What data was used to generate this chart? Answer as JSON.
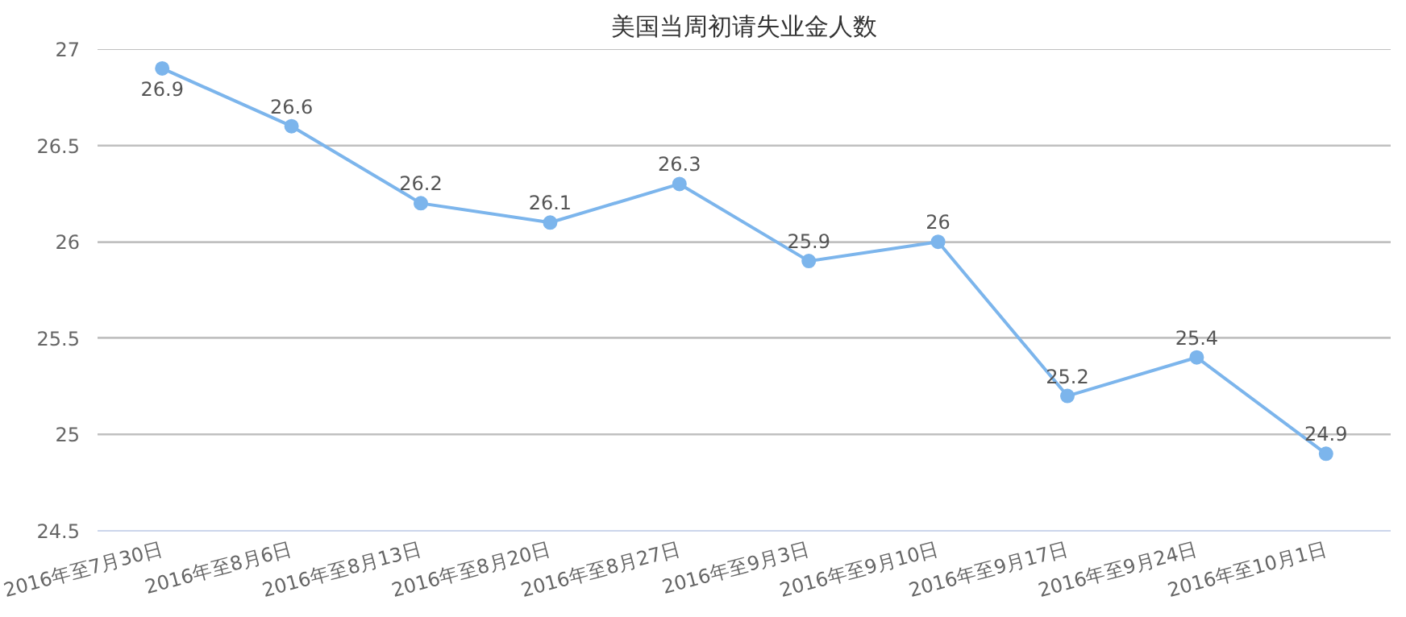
{
  "chart_data": {
    "type": "line",
    "title": "美国当周初请失业金人数",
    "categories": [
      "2016年至7月30日",
      "2016年至8月6日",
      "2016年至8月13日",
      "2016年至8月20日",
      "2016年至8月27日",
      "2016年至9月3日",
      "2016年至9月10日",
      "2016年至9月17日",
      "2016年至9月24日",
      "2016年至10月1日"
    ],
    "series": [
      {
        "color": "#7cb5ec",
        "values": [
          26.9,
          26.6,
          26.2,
          26.1,
          26.3,
          25.9,
          26,
          25.2,
          25.4,
          24.9
        ]
      }
    ],
    "ylim": [
      24.5,
      27
    ],
    "yticks": [
      24.5,
      25,
      25.5,
      26,
      26.5,
      27
    ],
    "grid": "y",
    "marker": "circle",
    "line_style": "solid",
    "data_labels": true
  }
}
